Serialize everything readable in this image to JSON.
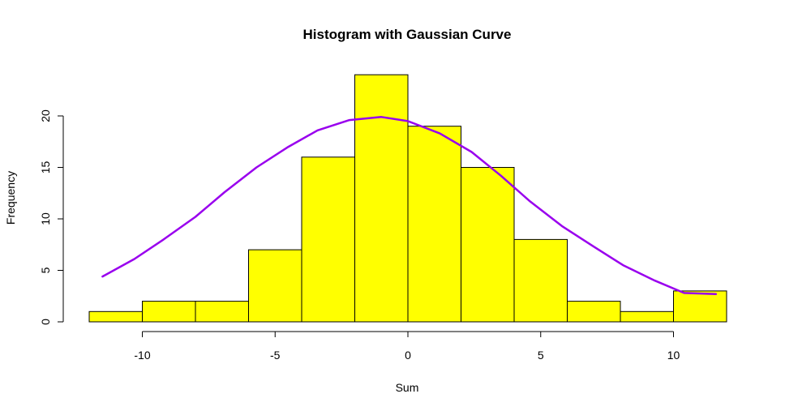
{
  "chart_data": {
    "type": "bar",
    "title": "Histogram with Gaussian Curve",
    "xlabel": "Sum",
    "ylabel": "Frequency",
    "bin_edges": [
      -12,
      -10,
      -8,
      -6,
      -4,
      -2,
      0,
      2,
      4,
      6,
      8,
      10,
      12
    ],
    "values": [
      1,
      2,
      2,
      7,
      16,
      24,
      19,
      15,
      8,
      2,
      1,
      3
    ],
    "xlim": [
      -12,
      12
    ],
    "ylim": [
      0,
      24
    ],
    "x_ticks": [
      -10,
      -5,
      0,
      5,
      10
    ],
    "y_ticks": [
      0,
      5,
      10,
      15,
      20
    ],
    "x_tick_labels": [
      "-10",
      "-5",
      "0",
      "5",
      "10"
    ],
    "y_tick_labels": [
      "0",
      "5",
      "10",
      "15",
      "20"
    ],
    "grid": false,
    "series": [
      {
        "type": "line",
        "x": [
          -11.5,
          -10.3,
          -9.2,
          -8.0,
          -6.9,
          -5.7,
          -4.5,
          -3.4,
          -2.2,
          -1.0,
          0.0,
          1.2,
          2.4,
          3.5,
          4.6,
          5.8,
          7.0,
          8.1,
          9.3,
          10.4,
          11.6
        ],
        "y": [
          4.4,
          6.1,
          8.0,
          10.2,
          12.6,
          15.0,
          17.0,
          18.6,
          19.6,
          19.9,
          19.5,
          18.3,
          16.5,
          14.2,
          11.7,
          9.3,
          7.3,
          5.5,
          4.0,
          2.8,
          2.7
        ]
      }
    ],
    "colors": {
      "bar_fill": "#ffff00",
      "bar_stroke": "#000000",
      "curve": "#9900ee"
    }
  }
}
